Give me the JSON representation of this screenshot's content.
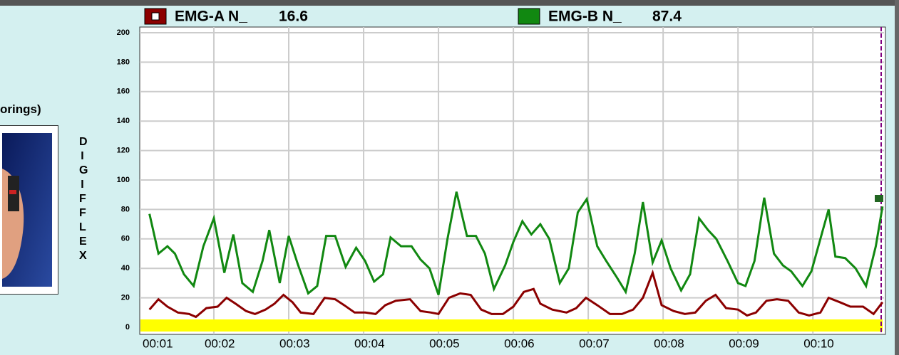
{
  "sidebar": {
    "caption": "orings)",
    "vertical_label": "DIGIFFLEX"
  },
  "chart_data": {
    "type": "line",
    "xlim": [
      1.01,
      10.95
    ],
    "xticks": [
      {
        "value": 1.01,
        "label": "00:01"
      },
      {
        "value": 2,
        "label": "00:02"
      },
      {
        "value": 3,
        "label": "00:03"
      },
      {
        "value": 4,
        "label": "00:04"
      },
      {
        "value": 5,
        "label": "00:05"
      },
      {
        "value": 6,
        "label": "00:06"
      },
      {
        "value": 7,
        "label": "00:07"
      },
      {
        "value": 8,
        "label": "00:08"
      },
      {
        "value": 9,
        "label": "00:09"
      },
      {
        "value": 10,
        "label": "00:10"
      }
    ],
    "ylim": [
      0,
      200
    ],
    "yticks": [
      0,
      20,
      40,
      60,
      80,
      100,
      120,
      140,
      160,
      180,
      200
    ],
    "grid": true,
    "series": [
      {
        "name": "EMG-A N_",
        "readout": 16.6,
        "color": "#8b0000",
        "x": [
          1.14,
          1.26,
          1.38,
          1.52,
          1.67,
          1.76,
          1.9,
          2.05,
          2.17,
          2.29,
          2.43,
          2.55,
          2.69,
          2.81,
          2.93,
          3.05,
          3.16,
          3.33,
          3.48,
          3.62,
          3.74,
          3.88,
          4.02,
          4.16,
          4.29,
          4.43,
          4.62,
          4.76,
          4.9,
          5.0,
          5.14,
          5.29,
          5.43,
          5.57,
          5.71,
          5.86,
          6.0,
          6.14,
          6.27,
          6.36,
          6.52,
          6.71,
          6.84,
          6.97,
          7.12,
          7.29,
          7.45,
          7.6,
          7.73,
          7.86,
          7.98,
          8.14,
          8.29,
          8.43,
          8.57,
          8.7,
          8.84,
          9.0,
          9.12,
          9.24,
          9.38,
          9.52,
          9.67,
          9.81,
          9.95,
          10.1,
          10.21,
          10.36,
          10.5,
          10.67,
          10.81,
          10.93
        ],
        "values": [
          12,
          19,
          14,
          10,
          9,
          7,
          13,
          14,
          20,
          16,
          11,
          9,
          12,
          16,
          22,
          17,
          10,
          9,
          20,
          19,
          15,
          10,
          10,
          9,
          15,
          18,
          19,
          11,
          10,
          9,
          20,
          23,
          22,
          12,
          9,
          9,
          14,
          24,
          26,
          16,
          12,
          10,
          13,
          20,
          15,
          9,
          9,
          12,
          20,
          37,
          15,
          11,
          9,
          10,
          18,
          22,
          13,
          12,
          8,
          10,
          18,
          19,
          18,
          10,
          8,
          10,
          20,
          17,
          14,
          14,
          9,
          17
        ]
      },
      {
        "name": "EMG-B N_",
        "readout": 87.4,
        "color": "#118811",
        "x": [
          1.14,
          1.26,
          1.38,
          1.48,
          1.6,
          1.73,
          1.86,
          2.0,
          2.14,
          2.26,
          2.38,
          2.52,
          2.65,
          2.74,
          2.88,
          3.0,
          3.12,
          3.26,
          3.38,
          3.5,
          3.62,
          3.76,
          3.9,
          4.02,
          4.14,
          4.26,
          4.36,
          4.5,
          4.64,
          4.76,
          4.88,
          5.0,
          5.12,
          5.24,
          5.38,
          5.5,
          5.62,
          5.74,
          5.89,
          6.0,
          6.12,
          6.24,
          6.36,
          6.48,
          6.62,
          6.74,
          6.86,
          6.98,
          7.12,
          7.24,
          7.38,
          7.5,
          7.62,
          7.73,
          7.86,
          7.98,
          8.1,
          8.24,
          8.36,
          8.48,
          8.6,
          8.71,
          8.86,
          9.0,
          9.1,
          9.22,
          9.35,
          9.48,
          9.6,
          9.71,
          9.86,
          9.98,
          10.1,
          10.21,
          10.3,
          10.43,
          10.57,
          10.71,
          10.84,
          10.93
        ],
        "values": [
          77,
          50,
          55,
          50,
          36,
          28,
          55,
          74,
          37,
          63,
          30,
          24,
          45,
          66,
          30,
          62,
          43,
          23,
          28,
          62,
          62,
          41,
          54,
          45,
          31,
          36,
          61,
          55,
          55,
          46,
          40,
          22,
          60,
          92,
          62,
          62,
          50,
          26,
          42,
          58,
          72,
          63,
          70,
          60,
          30,
          40,
          78,
          87,
          55,
          45,
          34,
          24,
          50,
          85,
          44,
          59,
          40,
          25,
          36,
          74,
          66,
          60,
          45,
          30,
          28,
          45,
          88,
          50,
          42,
          38,
          28,
          38,
          60,
          80,
          48,
          47,
          40,
          28,
          55,
          82
        ]
      }
    ]
  }
}
